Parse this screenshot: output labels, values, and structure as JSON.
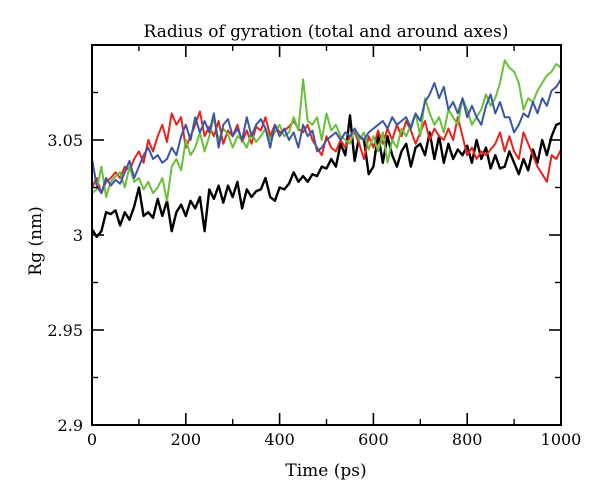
{
  "chart_data": {
    "type": "line",
    "title": "Radius of gyration (total and around axes)",
    "xlabel": "Time (ps)",
    "ylabel": "Rg (nm)",
    "xlim": [
      0,
      1000
    ],
    "ylim": [
      2.9,
      3.1
    ],
    "xticks": [
      0,
      200,
      400,
      600,
      800,
      1000
    ],
    "xtick_labels": [
      "0",
      "200",
      "400",
      "600",
      "800",
      "1000"
    ],
    "yticks": [
      2.9,
      2.95,
      3.0,
      3.05
    ],
    "ytick_labels": [
      "2.9",
      "2.95",
      "3",
      "3.05"
    ],
    "grid": false,
    "legend": "none",
    "series": [
      {
        "color": "#000000",
        "x": [
          0,
          10,
          20,
          30,
          40,
          50,
          60,
          70,
          80,
          90,
          100,
          110,
          120,
          130,
          140,
          150,
          160,
          170,
          180,
          190,
          200,
          210,
          220,
          230,
          240,
          250,
          260,
          270,
          280,
          290,
          300,
          310,
          320,
          330,
          340,
          350,
          360,
          370,
          380,
          390,
          400,
          410,
          420,
          430,
          440,
          450,
          460,
          470,
          480,
          490,
          500,
          510,
          520,
          530,
          540,
          550,
          560,
          570,
          580,
          590,
          600,
          610,
          620,
          630,
          640,
          650,
          660,
          670,
          680,
          690,
          700,
          710,
          720,
          730,
          740,
          750,
          760,
          770,
          780,
          790,
          800,
          810,
          820,
          830,
          840,
          850,
          860,
          870,
          880,
          890,
          900,
          910,
          920,
          930,
          940,
          950,
          960,
          970,
          980,
          990,
          1000
        ],
        "y": [
          3.003,
          2.999,
          3.002,
          3.012,
          3.011,
          3.013,
          3.005,
          3.012,
          3.008,
          3.015,
          3.025,
          3.01,
          3.012,
          3.009,
          3.019,
          3.01,
          3.018,
          3.002,
          3.012,
          3.016,
          3.01,
          3.018,
          3.014,
          3.02,
          3.002,
          3.024,
          3.019,
          3.026,
          3.017,
          3.026,
          3.02,
          3.028,
          3.014,
          3.024,
          3.02,
          3.023,
          3.024,
          3.03,
          3.02,
          3.018,
          3.025,
          3.024,
          3.027,
          3.033,
          3.028,
          3.031,
          3.028,
          3.032,
          3.031,
          3.036,
          3.035,
          3.04,
          3.036,
          3.048,
          3.042,
          3.063,
          3.039,
          3.052,
          3.05,
          3.032,
          3.036,
          3.053,
          3.038,
          3.052,
          3.042,
          3.036,
          3.044,
          3.048,
          3.036,
          3.046,
          3.048,
          3.042,
          3.054,
          3.04,
          3.052,
          3.038,
          3.048,
          3.04,
          3.045,
          3.042,
          3.047,
          3.038,
          3.05,
          3.04,
          3.046,
          3.035,
          3.042,
          3.035,
          3.036,
          3.044,
          3.038,
          3.032,
          3.04,
          3.034,
          3.045,
          3.038,
          3.05,
          3.042,
          3.052,
          3.058,
          3.059
        ]
      },
      {
        "color": "#e8231c",
        "x": [
          0,
          10,
          20,
          30,
          40,
          50,
          60,
          70,
          80,
          90,
          100,
          110,
          120,
          130,
          140,
          150,
          160,
          170,
          180,
          190,
          200,
          210,
          220,
          230,
          240,
          250,
          260,
          270,
          280,
          290,
          300,
          310,
          320,
          330,
          340,
          350,
          360,
          370,
          380,
          390,
          400,
          410,
          420,
          430,
          440,
          450,
          460,
          470,
          480,
          490,
          500,
          510,
          520,
          530,
          540,
          550,
          560,
          570,
          580,
          590,
          600,
          610,
          620,
          630,
          640,
          650,
          660,
          670,
          680,
          690,
          700,
          710,
          720,
          730,
          740,
          750,
          760,
          770,
          780,
          790,
          800,
          810,
          820,
          830,
          840,
          850,
          860,
          870,
          880,
          890,
          900,
          910,
          920,
          930,
          940,
          950,
          960,
          970,
          980,
          990,
          1000
        ],
        "y": [
          3.025,
          3.03,
          3.022,
          3.028,
          3.03,
          3.033,
          3.03,
          3.036,
          3.034,
          3.04,
          3.044,
          3.038,
          3.05,
          3.044,
          3.052,
          3.058,
          3.049,
          3.064,
          3.058,
          3.062,
          3.046,
          3.052,
          3.058,
          3.065,
          3.052,
          3.057,
          3.052,
          3.06,
          3.048,
          3.055,
          3.052,
          3.058,
          3.049,
          3.055,
          3.048,
          3.057,
          3.055,
          3.062,
          3.052,
          3.058,
          3.054,
          3.055,
          3.057,
          3.06,
          3.056,
          3.054,
          3.058,
          3.05,
          3.046,
          3.042,
          3.052,
          3.046,
          3.044,
          3.05,
          3.046,
          3.052,
          3.054,
          3.048,
          3.04,
          3.052,
          3.046,
          3.055,
          3.048,
          3.056,
          3.05,
          3.058,
          3.052,
          3.06,
          3.055,
          3.048,
          3.054,
          3.06,
          3.05,
          3.056,
          3.052,
          3.05,
          3.056,
          3.05,
          3.062,
          3.052,
          3.042,
          3.046,
          3.04,
          3.044,
          3.042,
          3.045,
          3.048,
          3.054,
          3.044,
          3.052,
          3.044,
          3.04,
          3.054,
          3.048,
          3.042,
          3.036,
          3.032,
          3.028,
          3.042,
          3.04,
          3.045
        ]
      },
      {
        "color": "#6abf3b",
        "x": [
          0,
          10,
          20,
          30,
          40,
          50,
          60,
          70,
          80,
          90,
          100,
          110,
          120,
          130,
          140,
          150,
          160,
          170,
          180,
          190,
          200,
          210,
          220,
          230,
          240,
          250,
          260,
          270,
          280,
          290,
          300,
          310,
          320,
          330,
          340,
          350,
          360,
          370,
          380,
          390,
          400,
          410,
          420,
          430,
          440,
          450,
          460,
          470,
          480,
          490,
          500,
          510,
          520,
          530,
          540,
          550,
          560,
          570,
          580,
          590,
          600,
          610,
          620,
          630,
          640,
          650,
          660,
          670,
          680,
          690,
          700,
          710,
          720,
          730,
          740,
          750,
          760,
          770,
          780,
          790,
          800,
          810,
          820,
          830,
          840,
          850,
          860,
          870,
          880,
          890,
          900,
          910,
          920,
          930,
          940,
          950,
          960,
          970,
          980,
          990,
          1000
        ],
        "y": [
          3.022,
          3.024,
          3.036,
          3.02,
          3.028,
          3.031,
          3.033,
          3.025,
          3.036,
          3.028,
          3.03,
          3.024,
          3.028,
          3.022,
          3.025,
          3.03,
          3.018,
          3.036,
          3.04,
          3.034,
          3.05,
          3.042,
          3.046,
          3.054,
          3.044,
          3.052,
          3.062,
          3.05,
          3.056,
          3.053,
          3.046,
          3.052,
          3.05,
          3.046,
          3.054,
          3.049,
          3.052,
          3.056,
          3.05,
          3.054,
          3.058,
          3.052,
          3.054,
          3.062,
          3.055,
          3.082,
          3.06,
          3.058,
          3.062,
          3.05,
          3.064,
          3.055,
          3.058,
          3.052,
          3.05,
          3.048,
          3.056,
          3.05,
          3.054,
          3.045,
          3.052,
          3.044,
          3.054,
          3.038,
          3.05,
          3.046,
          3.056,
          3.052,
          3.058,
          3.064,
          3.052,
          3.072,
          3.064,
          3.058,
          3.062,
          3.054,
          3.066,
          3.062,
          3.058,
          3.072,
          3.066,
          3.058,
          3.062,
          3.066,
          3.074,
          3.068,
          3.072,
          3.08,
          3.092,
          3.088,
          3.086,
          3.08,
          3.066,
          3.072,
          3.07,
          3.076,
          3.08,
          3.084,
          3.086,
          3.09,
          3.088
        ]
      },
      {
        "color": "#3c56a6",
        "x": [
          0,
          10,
          20,
          30,
          40,
          50,
          60,
          70,
          80,
          90,
          100,
          110,
          120,
          130,
          140,
          150,
          160,
          170,
          180,
          190,
          200,
          210,
          220,
          230,
          240,
          250,
          260,
          270,
          280,
          290,
          300,
          310,
          320,
          330,
          340,
          350,
          360,
          370,
          380,
          390,
          400,
          410,
          420,
          430,
          440,
          450,
          460,
          470,
          480,
          490,
          500,
          510,
          520,
          530,
          540,
          550,
          560,
          570,
          580,
          590,
          600,
          610,
          620,
          630,
          640,
          650,
          660,
          670,
          680,
          690,
          700,
          710,
          720,
          730,
          740,
          750,
          760,
          770,
          780,
          790,
          800,
          810,
          820,
          830,
          840,
          850,
          860,
          870,
          880,
          890,
          900,
          910,
          920,
          930,
          940,
          950,
          960,
          970,
          980,
          990,
          1000
        ],
        "y": [
          3.04,
          3.026,
          3.022,
          3.03,
          3.026,
          3.029,
          3.027,
          3.033,
          3.039,
          3.03,
          3.036,
          3.042,
          3.046,
          3.04,
          3.042,
          3.038,
          3.04,
          3.046,
          3.042,
          3.052,
          3.058,
          3.05,
          3.062,
          3.054,
          3.06,
          3.054,
          3.064,
          3.046,
          3.058,
          3.061,
          3.052,
          3.056,
          3.05,
          3.062,
          3.052,
          3.058,
          3.061,
          3.056,
          3.046,
          3.058,
          3.052,
          3.056,
          3.05,
          3.054,
          3.046,
          3.058,
          3.052,
          3.055,
          3.044,
          3.046,
          3.05,
          3.052,
          3.054,
          3.05,
          3.054,
          3.052,
          3.056,
          3.052,
          3.05,
          3.054,
          3.056,
          3.058,
          3.06,
          3.056,
          3.062,
          3.058,
          3.06,
          3.062,
          3.056,
          3.064,
          3.06,
          3.07,
          3.074,
          3.08,
          3.072,
          3.078,
          3.066,
          3.07,
          3.064,
          3.072,
          3.062,
          3.068,
          3.062,
          3.058,
          3.068,
          3.074,
          3.064,
          3.07,
          3.062,
          3.062,
          3.054,
          3.058,
          3.064,
          3.062,
          3.07,
          3.064,
          3.072,
          3.068,
          3.076,
          3.078,
          3.082
        ]
      }
    ]
  }
}
